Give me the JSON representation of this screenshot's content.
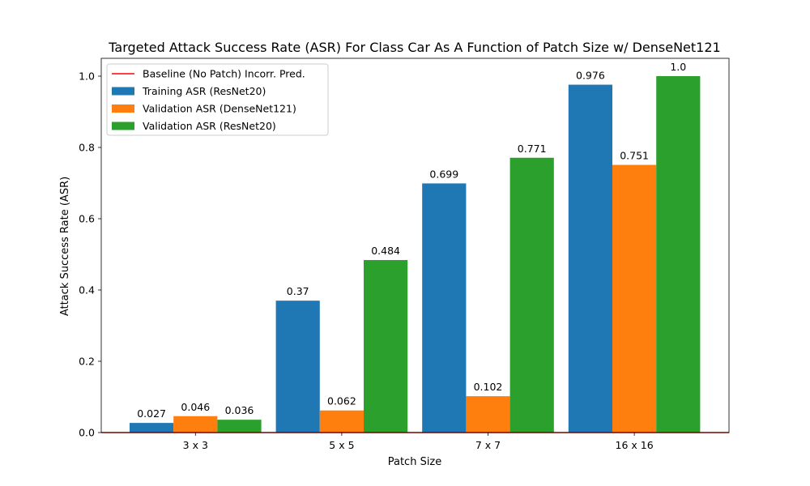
{
  "chart_data": {
    "type": "bar",
    "title": "Targeted Attack Success Rate (ASR) For Class Car As A Function of Patch Size w/ DenseNet121",
    "xlabel": "Patch Size",
    "ylabel": "Attack Success Rate (ASR)",
    "categories": [
      "3 x 3",
      "5 x 5",
      "7 x 7",
      "16 x 16"
    ],
    "ylim": [
      0,
      1.05
    ],
    "yticks": [
      0.0,
      0.2,
      0.4,
      0.6,
      0.8,
      1.0
    ],
    "ytick_labels": [
      "0.0",
      "0.2",
      "0.4",
      "0.6",
      "0.8",
      "1.0"
    ],
    "grid": false,
    "legend_position": "top-left",
    "series": [
      {
        "name": "Training ASR (ResNet20)",
        "color": "#1f77b4",
        "values": [
          0.027,
          0.37,
          0.699,
          0.976
        ],
        "labels": [
          "0.027",
          "0.37",
          "0.699",
          "0.976"
        ]
      },
      {
        "name": "Validation ASR (DenseNet121)",
        "color": "#ff7f0e",
        "values": [
          0.046,
          0.062,
          0.102,
          0.751
        ],
        "labels": [
          "0.046",
          "0.062",
          "0.102",
          "0.751"
        ]
      },
      {
        "name": "Validation ASR (ResNet20)",
        "color": "#2ca02c",
        "values": [
          0.036,
          0.484,
          0.771,
          1.0
        ],
        "labels": [
          "0.036",
          "0.484",
          "0.771",
          "1.0"
        ]
      }
    ],
    "baseline": {
      "name": "Baseline (No Patch) Incorr. Pred.",
      "value": 0.0,
      "color": "#ff0000"
    }
  }
}
